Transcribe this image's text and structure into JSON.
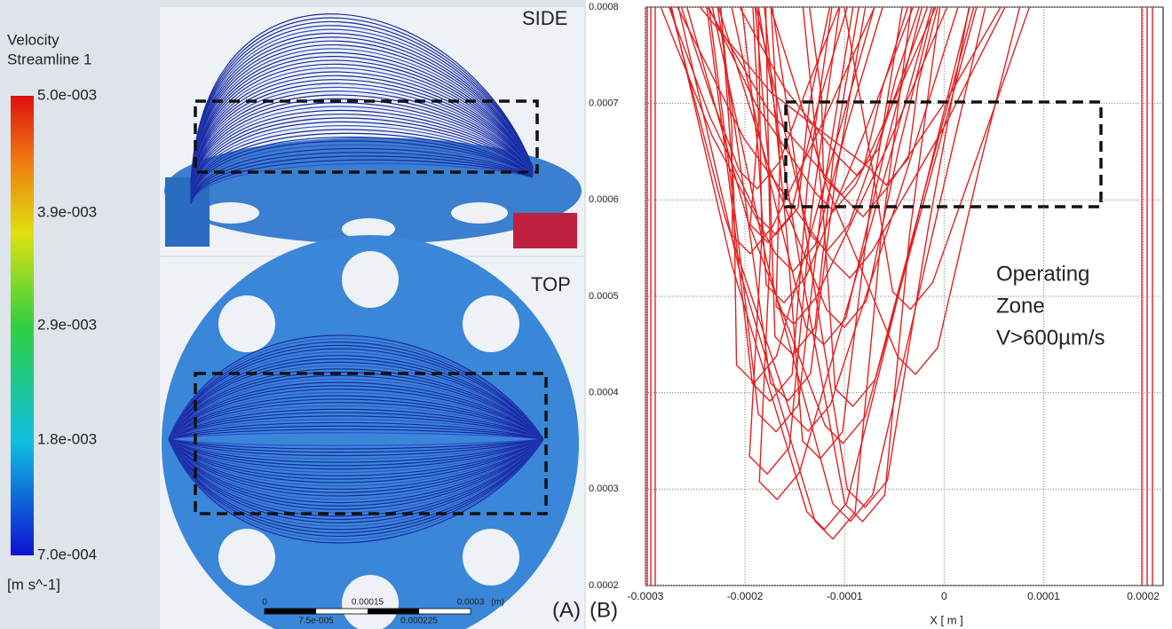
{
  "panel_a": {
    "legend": {
      "title": [
        "Velocity",
        "Streamline 1"
      ],
      "ticks": [
        "5.0e-003",
        "3.9e-003",
        "2.9e-003",
        "1.8e-003",
        "7.0e-004"
      ],
      "unit": "[m s^-1]"
    },
    "side_label": "SIDE",
    "top_label": "TOP",
    "scale_bar": {
      "top": [
        "0",
        "0.00015",
        "0.0003",
        "(m)"
      ],
      "bottom": [
        "7.5e-005",
        "0.000225"
      ]
    },
    "label": "(A)"
  },
  "panel_b": {
    "label": "(B)",
    "annotation": [
      "Operating",
      "Zone",
      "V>600µm/s"
    ],
    "x_label": "X [ m ]",
    "xlim": [
      -0.0003,
      0.00022
    ],
    "xticks": [
      -0.0003,
      -0.0002,
      -0.0001,
      0,
      0.0001,
      0.0002
    ],
    "ylim": [
      0.0002,
      0.0008
    ],
    "yticks": [
      0.0002,
      0.0003,
      0.0004,
      0.0005,
      0.0006,
      0.0007,
      0.0008
    ],
    "grid": true
  }
}
